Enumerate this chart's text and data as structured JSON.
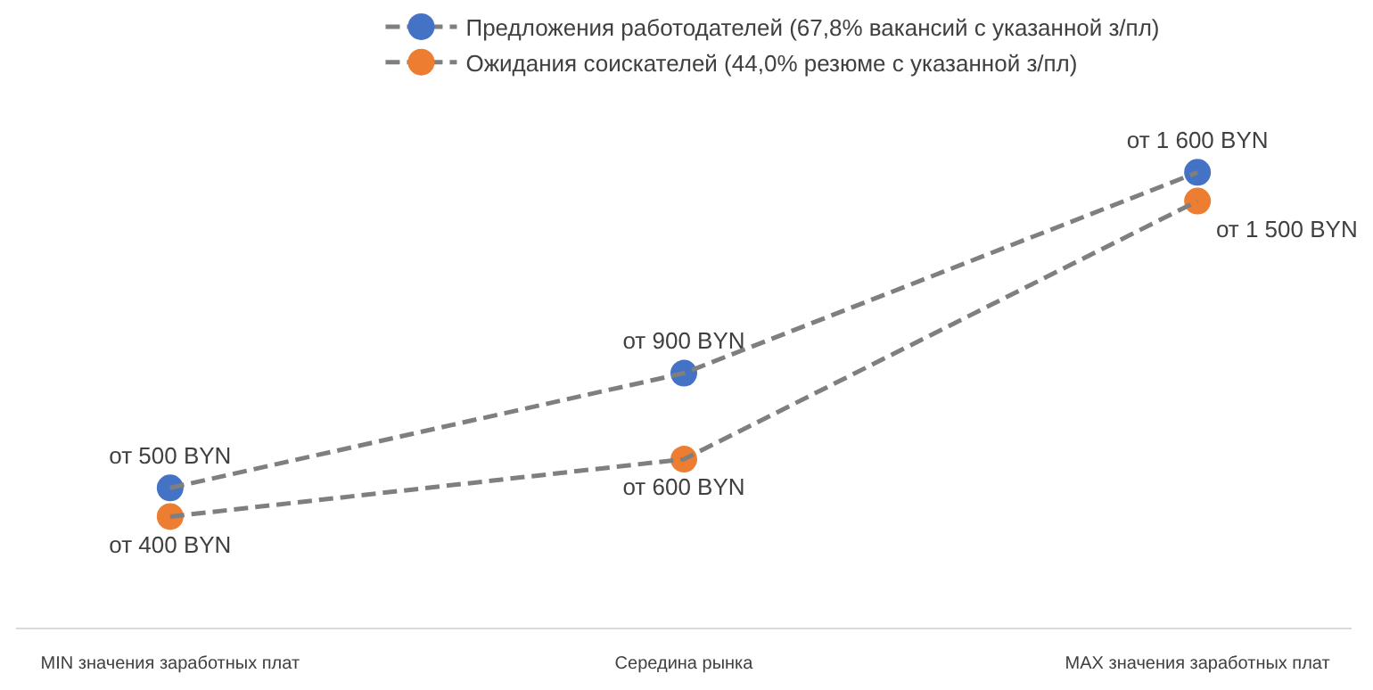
{
  "chart_data": {
    "type": "line",
    "categories": [
      "MIN значения заработных плат",
      "Середина рынка",
      "MAX значения заработных плат"
    ],
    "series": [
      {
        "name": "Предложения работодателей (67,8% вакансий с указанной з/пл)",
        "color": "#4472c4",
        "values": [
          500,
          900,
          1600
        ],
        "value_labels": [
          "от 500 BYN",
          "от 900 BYN",
          "от 1 600 BYN"
        ]
      },
      {
        "name": "Ожидания соискателей (44,0% резюме с указанной з/пл)",
        "color": "#ed7d31",
        "values": [
          400,
          600,
          1500
        ],
        "value_labels": [
          "от 400 BYN",
          "от 600 BYN",
          "от 1 500 BYN"
        ]
      }
    ],
    "legend": "top",
    "marker": "circle",
    "line_style": "dashed",
    "grid": false
  }
}
